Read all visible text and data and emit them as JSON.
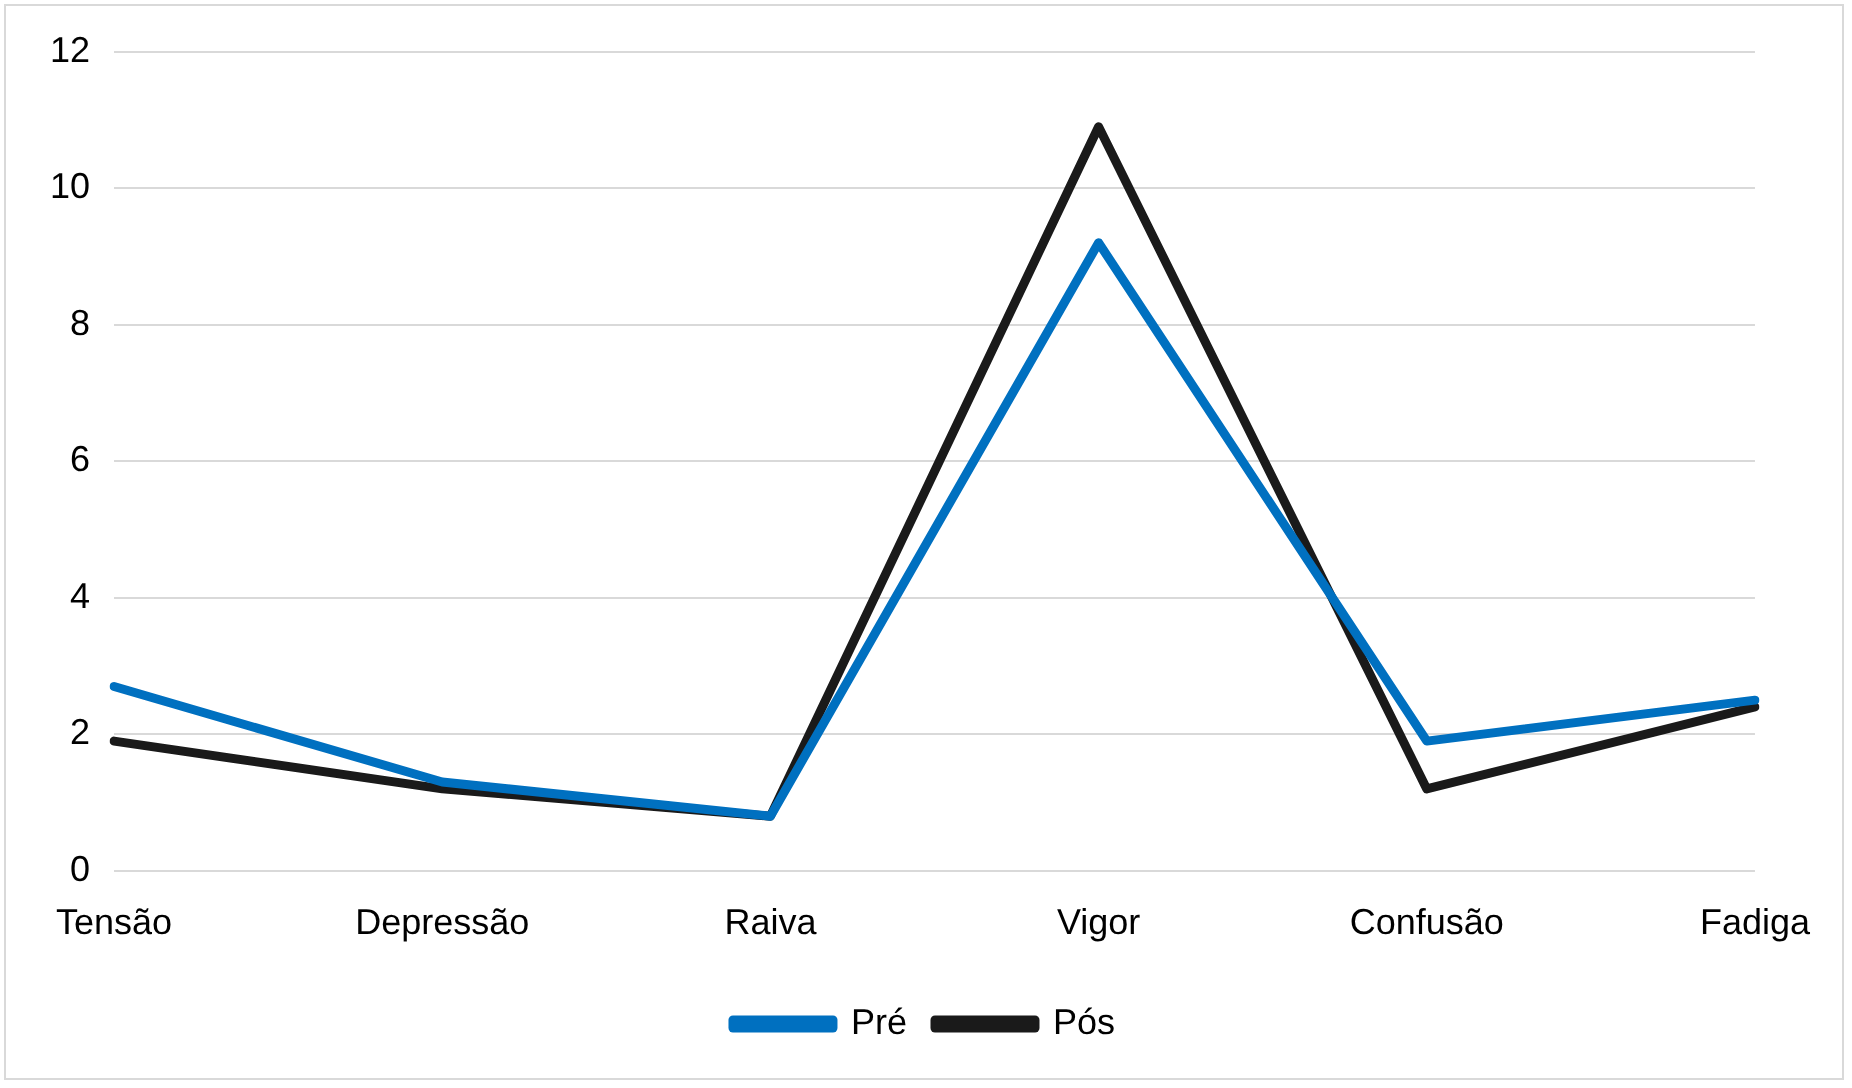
{
  "chart_data": {
    "type": "line",
    "categories": [
      "Tensão",
      "Depressão",
      "Raiva",
      "Vigor",
      "Confusão",
      "Fadiga"
    ],
    "series": [
      {
        "name": "Pré",
        "color": "#0070c0",
        "values": [
          2.7,
          1.3,
          0.8,
          9.2,
          1.9,
          2.5
        ]
      },
      {
        "name": "Pós",
        "color": "#1a1a1a",
        "values": [
          1.9,
          1.2,
          0.8,
          10.9,
          1.2,
          2.4
        ]
      }
    ],
    "ylim": [
      0,
      12
    ],
    "yticks": [
      0,
      2,
      4,
      6,
      8,
      10,
      12
    ],
    "grid": "y",
    "legend": "bottom",
    "marker": "none",
    "line_style": "solid"
  }
}
